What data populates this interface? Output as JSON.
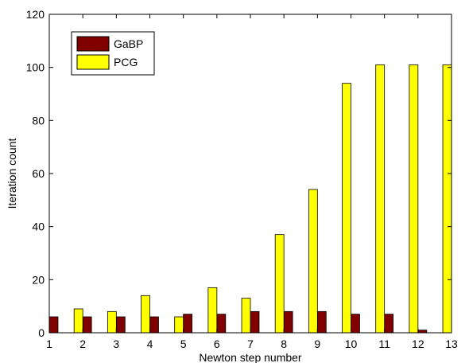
{
  "chart_data": {
    "type": "bar",
    "title": "",
    "xlabel": "Newton step number",
    "ylabel": "Iteration count",
    "categories": [
      "1",
      "2",
      "3",
      "4",
      "5",
      "6",
      "7",
      "8",
      "9",
      "10",
      "11",
      "12",
      "13"
    ],
    "xlim": [
      1,
      13
    ],
    "ylim": [
      0,
      120
    ],
    "yticks": [
      "0",
      "20",
      "40",
      "60",
      "80",
      "100",
      "120"
    ],
    "grid": false,
    "legend_position": "top-left",
    "series": [
      {
        "name": "GaBP",
        "color": "#800000",
        "values": [
          6,
          6,
          6,
          6,
          7,
          7,
          8,
          8,
          8,
          7,
          7,
          1,
          0
        ]
      },
      {
        "name": "PCG",
        "color": "#ffff00",
        "values": [
          0,
          9,
          8,
          14,
          6,
          17,
          13,
          37,
          54,
          94,
          101,
          101,
          101
        ]
      }
    ]
  }
}
